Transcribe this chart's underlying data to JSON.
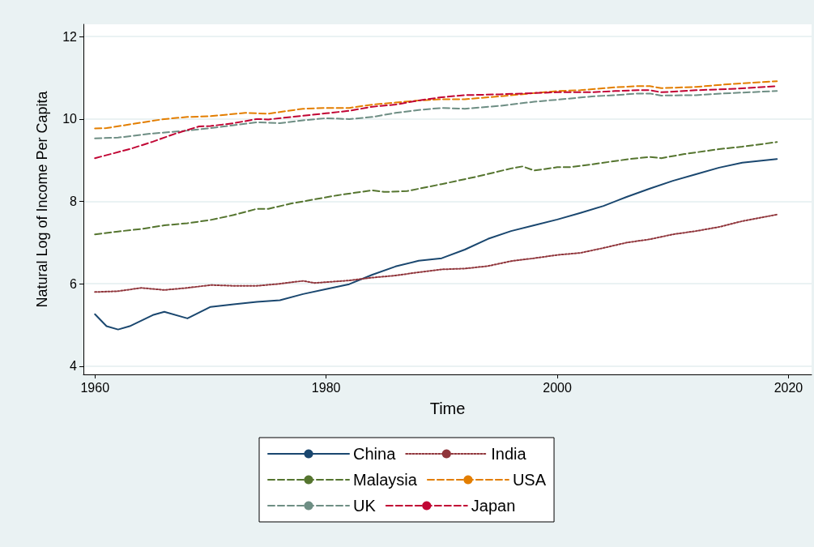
{
  "chart_data": {
    "type": "line",
    "xlabel": "Time",
    "ylabel": "Natural Log of Income Per Capita",
    "xlim": [
      1959,
      2022
    ],
    "xticks": [
      1960,
      1980,
      2000,
      2020
    ],
    "ylim": [
      3.8,
      12.3
    ],
    "yticks": [
      4,
      6,
      8,
      10,
      12
    ],
    "grid": "y",
    "legend": "bottom",
    "marker": "none",
    "series": [
      {
        "name": "China",
        "color": "#1a476f",
        "line_style": "solid",
        "x": [
          1960,
          1961,
          1962,
          1963,
          1965,
          1966,
          1968,
          1970,
          1972,
          1974,
          1976,
          1978,
          1980,
          1982,
          1984,
          1986,
          1988,
          1990,
          1992,
          1994,
          1996,
          1998,
          2000,
          2002,
          2004,
          2006,
          2008,
          2010,
          2012,
          2014,
          2016,
          2019
        ],
        "values": [
          5.26,
          4.97,
          4.89,
          4.97,
          5.24,
          5.32,
          5.16,
          5.44,
          5.5,
          5.56,
          5.6,
          5.75,
          5.87,
          5.99,
          6.22,
          6.42,
          6.56,
          6.62,
          6.83,
          7.09,
          7.28,
          7.42,
          7.56,
          7.72,
          7.89,
          8.11,
          8.31,
          8.5,
          8.66,
          8.82,
          8.94,
          9.03
        ]
      },
      {
        "name": "India",
        "color": "#90353b",
        "line_style": "dotted",
        "x": [
          1960,
          1962,
          1964,
          1966,
          1968,
          1970,
          1972,
          1974,
          1976,
          1978,
          1979,
          1982,
          1984,
          1986,
          1988,
          1990,
          1992,
          1994,
          1996,
          1998,
          2000,
          2002,
          2004,
          2006,
          2008,
          2010,
          2012,
          2014,
          2016,
          2019
        ],
        "values": [
          5.8,
          5.82,
          5.9,
          5.85,
          5.9,
          5.97,
          5.95,
          5.95,
          6.0,
          6.07,
          6.02,
          6.08,
          6.15,
          6.2,
          6.28,
          6.35,
          6.37,
          6.43,
          6.55,
          6.62,
          6.7,
          6.75,
          6.87,
          7.0,
          7.08,
          7.2,
          7.28,
          7.38,
          7.52,
          7.68
        ]
      },
      {
        "name": "Malaysia",
        "color": "#55752f",
        "line_style": "dashed",
        "x": [
          1960,
          1962,
          1964,
          1966,
          1968,
          1970,
          1972,
          1974,
          1975,
          1977,
          1979,
          1981,
          1984,
          1985,
          1987,
          1990,
          1993,
          1996,
          1997,
          1998,
          2000,
          2001,
          2003,
          2006,
          2008,
          2009,
          2011,
          2014,
          2016,
          2019
        ],
        "values": [
          7.2,
          7.27,
          7.33,
          7.42,
          7.47,
          7.55,
          7.67,
          7.82,
          7.82,
          7.95,
          8.05,
          8.15,
          8.27,
          8.23,
          8.25,
          8.42,
          8.6,
          8.8,
          8.85,
          8.75,
          8.83,
          8.83,
          8.9,
          9.02,
          9.08,
          9.05,
          9.15,
          9.27,
          9.33,
          9.44
        ]
      },
      {
        "name": "USA",
        "color": "#e37e00",
        "line_style": "dashed",
        "x": [
          1960,
          1961,
          1963,
          1966,
          1968,
          1970,
          1973,
          1975,
          1978,
          1980,
          1982,
          1984,
          1986,
          1988,
          1990,
          1992,
          1995,
          1998,
          2000,
          2002,
          2005,
          2007,
          2008,
          2009,
          2012,
          2015,
          2019
        ],
        "values": [
          9.77,
          9.78,
          9.87,
          10.0,
          10.05,
          10.07,
          10.15,
          10.13,
          10.25,
          10.27,
          10.27,
          10.35,
          10.4,
          10.45,
          10.48,
          10.48,
          10.55,
          10.63,
          10.68,
          10.7,
          10.77,
          10.8,
          10.8,
          10.75,
          10.78,
          10.85,
          10.92
        ]
      },
      {
        "name": "UK",
        "color": "#6e8e84",
        "line_style": "dashed",
        "x": [
          1960,
          1962,
          1965,
          1968,
          1970,
          1972,
          1974,
          1976,
          1978,
          1980,
          1982,
          1984,
          1986,
          1988,
          1990,
          1992,
          1995,
          1998,
          2000,
          2003,
          2005,
          2007,
          2008,
          2009,
          2012,
          2015,
          2019
        ],
        "values": [
          9.53,
          9.55,
          9.65,
          9.72,
          9.78,
          9.85,
          9.92,
          9.9,
          9.97,
          10.02,
          10.0,
          10.05,
          10.15,
          10.22,
          10.27,
          10.25,
          10.32,
          10.42,
          10.47,
          10.55,
          10.58,
          10.62,
          10.62,
          10.57,
          10.58,
          10.63,
          10.68
        ]
      },
      {
        "name": "Japan",
        "color": "#c10534",
        "line_style": "dashed",
        "x": [
          1960,
          1963,
          1965,
          1967,
          1969,
          1970,
          1972,
          1974,
          1975,
          1978,
          1980,
          1982,
          1984,
          1986,
          1988,
          1990,
          1992,
          1995,
          1998,
          2000,
          2003,
          2005,
          2007,
          2008,
          2009,
          2012,
          2015,
          2019
        ],
        "values": [
          9.05,
          9.27,
          9.45,
          9.65,
          9.82,
          9.83,
          9.9,
          10.0,
          9.99,
          10.08,
          10.14,
          10.2,
          10.3,
          10.35,
          10.45,
          10.53,
          10.58,
          10.6,
          10.63,
          10.65,
          10.65,
          10.68,
          10.7,
          10.7,
          10.65,
          10.7,
          10.73,
          10.8
        ]
      }
    ]
  }
}
